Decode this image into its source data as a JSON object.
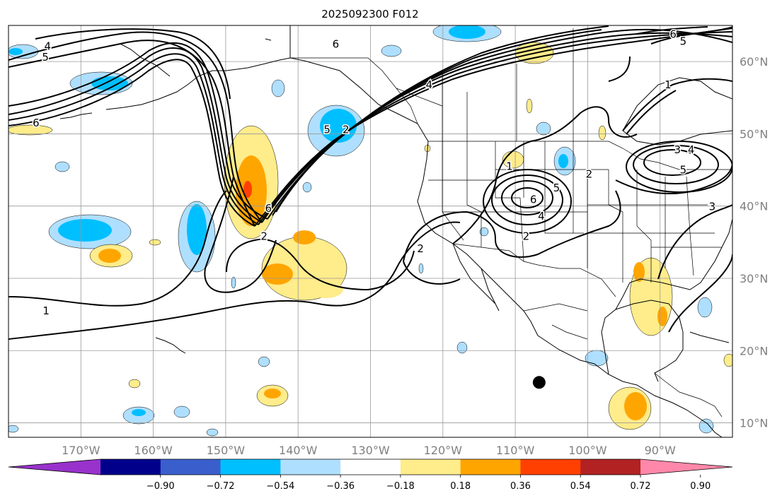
{
  "title": "2025092300 F012",
  "map": {
    "lon_range": [
      -180,
      -80
    ],
    "lat_range": [
      8,
      65
    ],
    "lon_ticks": [
      {
        "value": -170,
        "label": "170°W"
      },
      {
        "value": -160,
        "label": "160°W"
      },
      {
        "value": -150,
        "label": "150°W"
      },
      {
        "value": -140,
        "label": "140°W"
      },
      {
        "value": -130,
        "label": "130°W"
      },
      {
        "value": -120,
        "label": "120°W"
      },
      {
        "value": -110,
        "label": "110°W"
      },
      {
        "value": -100,
        "label": "100°W"
      },
      {
        "value": -90,
        "label": "90°W"
      }
    ],
    "lat_ticks": [
      {
        "value": 60,
        "label": "60°N"
      },
      {
        "value": 50,
        "label": "50°N"
      },
      {
        "value": 40,
        "label": "40°N"
      },
      {
        "value": 30,
        "label": "30°N"
      },
      {
        "value": 20,
        "label": "20°N"
      },
      {
        "value": 10,
        "label": "10°N"
      }
    ],
    "grid": true,
    "marker": {
      "lon": -106.7,
      "lat": 15.6
    }
  },
  "colorbar": {
    "colors": [
      "#9932cc",
      "#00008b",
      "#3a5fcd",
      "#00bfff",
      "#afdfff",
      "#ffffff",
      "#ffec8b",
      "#ffa500",
      "#ff4000",
      "#b22222",
      "#ff88aa"
    ],
    "tick_labels": [
      "−0.90",
      "−0.72",
      "−0.54",
      "−0.36",
      "−0.18",
      "0.18",
      "0.36",
      "0.54",
      "0.72",
      "0.90"
    ]
  },
  "contour_labels": [
    {
      "text": "4",
      "lon": -174.6,
      "lat": 62.1
    },
    {
      "text": "5",
      "lon": -174.9,
      "lat": 60.6
    },
    {
      "text": "6",
      "lon": -176.2,
      "lat": 51.5
    },
    {
      "text": "1",
      "lon": -174.8,
      "lat": 25.5
    },
    {
      "text": "6",
      "lon": -134.8,
      "lat": 62.4
    },
    {
      "text": "6",
      "lon": -144.1,
      "lat": 39.7
    },
    {
      "text": "2",
      "lon": -144.7,
      "lat": 35.8
    },
    {
      "text": "5",
      "lon": -136.0,
      "lat": 50.6
    },
    {
      "text": "2",
      "lon": -133.4,
      "lat": 50.6
    },
    {
      "text": "4",
      "lon": -121.9,
      "lat": 56.8
    },
    {
      "text": "2",
      "lon": -123.1,
      "lat": 34.1
    },
    {
      "text": "1",
      "lon": -110.8,
      "lat": 45.5
    },
    {
      "text": "6",
      "lon": -107.5,
      "lat": 40.9
    },
    {
      "text": "5",
      "lon": -104.3,
      "lat": 42.5
    },
    {
      "text": "4",
      "lon": -106.4,
      "lat": 38.6
    },
    {
      "text": "2",
      "lon": -108.5,
      "lat": 35.8
    },
    {
      "text": "2",
      "lon": -99.8,
      "lat": 44.4
    },
    {
      "text": "6",
      "lon": -88.2,
      "lat": 63.8
    },
    {
      "text": "5",
      "lon": -86.8,
      "lat": 62.8
    },
    {
      "text": "1",
      "lon": -88.9,
      "lat": 56.8
    },
    {
      "text": "3",
      "lon": -87.6,
      "lat": 47.8
    },
    {
      "text": "4",
      "lon": -85.7,
      "lat": 47.8
    },
    {
      "text": "5",
      "lon": -86.8,
      "lat": 45.0
    },
    {
      "text": "3",
      "lon": -82.8,
      "lat": 39.9
    }
  ]
}
